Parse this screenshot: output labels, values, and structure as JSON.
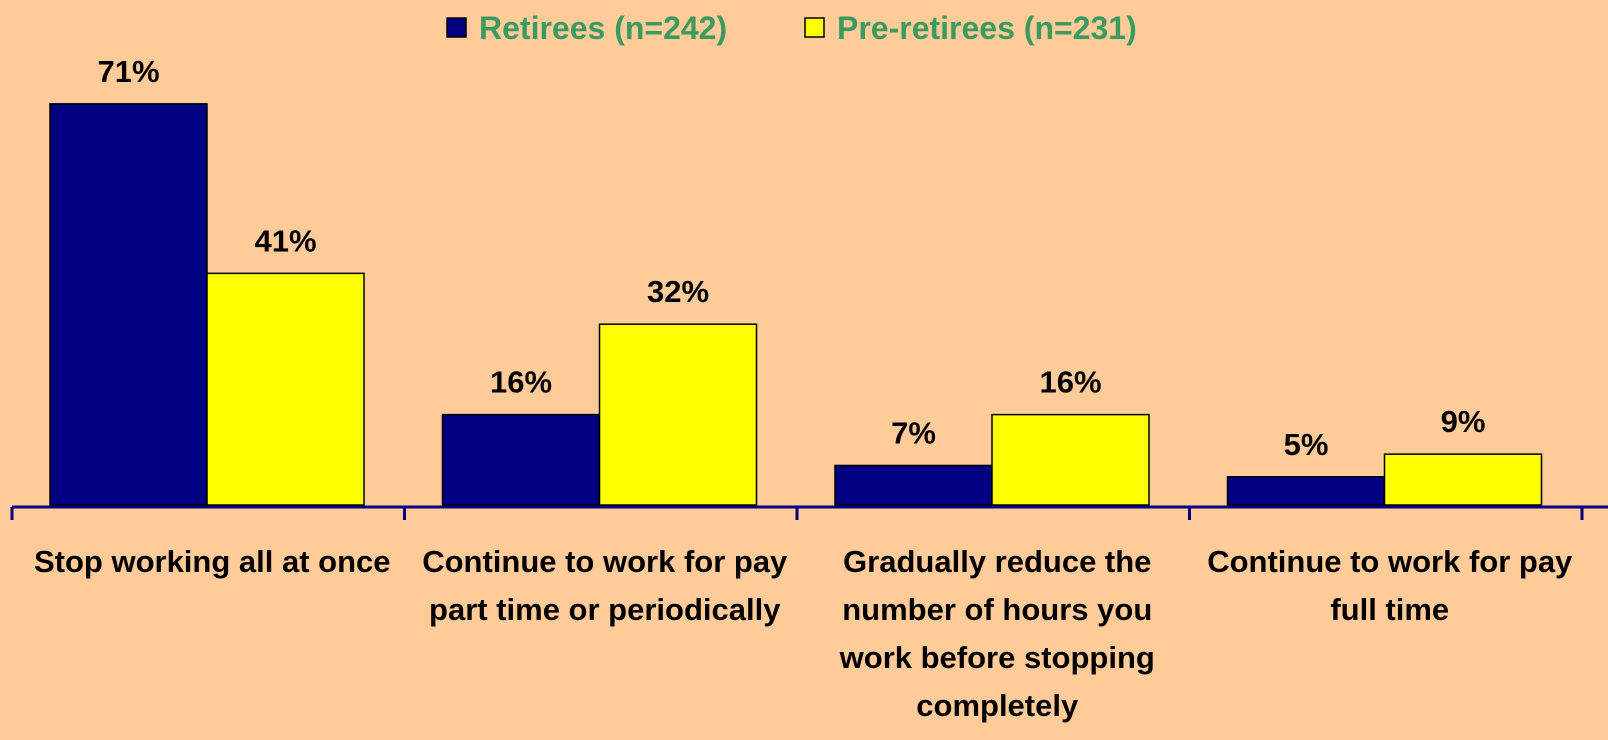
{
  "chart_data": {
    "type": "bar",
    "categories": [
      "Stop working all at once",
      "Continue to work for pay part time or periodically",
      "Gradually reduce the number of hours you work before stopping completely",
      "Continue to work for pay full time"
    ],
    "series": [
      {
        "name": "Retirees (n=242)",
        "color": "#000080",
        "values": [
          71,
          16,
          7,
          5
        ],
        "value_labels": [
          "71%",
          "16%",
          "7%",
          "5%"
        ]
      },
      {
        "name": "Pre-retirees (n=231)",
        "color": "#FFFF00",
        "values": [
          41,
          32,
          16,
          9
        ],
        "value_labels": [
          "41%",
          "32%",
          "16%",
          "9%"
        ]
      }
    ],
    "ylim": [
      0,
      80
    ],
    "legend": "top",
    "background": "#FFCC99",
    "legend_text_color": "#3C9A5F"
  }
}
